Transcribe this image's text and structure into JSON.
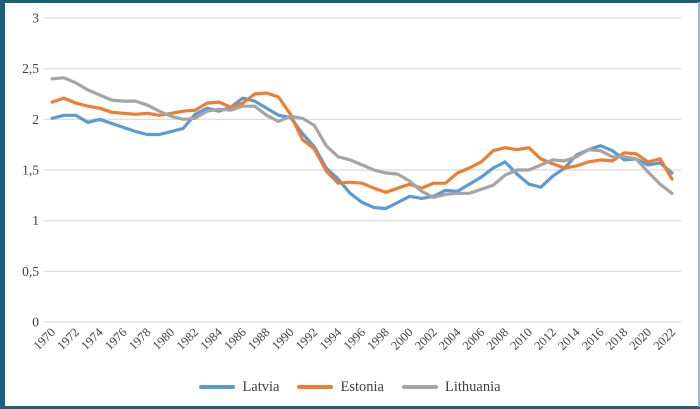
{
  "chart_data": {
    "type": "line",
    "title": "",
    "xlabel": "",
    "ylabel": "",
    "x": [
      1970,
      1971,
      1972,
      1973,
      1974,
      1975,
      1976,
      1977,
      1978,
      1979,
      1980,
      1981,
      1982,
      1983,
      1984,
      1985,
      1986,
      1987,
      1988,
      1989,
      1990,
      1991,
      1992,
      1993,
      1994,
      1995,
      1996,
      1997,
      1998,
      1999,
      2000,
      2001,
      2002,
      2003,
      2004,
      2005,
      2006,
      2007,
      2008,
      2009,
      2010,
      2011,
      2012,
      2013,
      2014,
      2015,
      2016,
      2017,
      2018,
      2019,
      2020,
      2021,
      2022
    ],
    "series": [
      {
        "name": "Latvia",
        "color": "#5B9BD5",
        "values": [
          2.01,
          2.04,
          2.04,
          1.97,
          2.0,
          1.96,
          1.92,
          1.88,
          1.85,
          1.85,
          1.88,
          1.91,
          2.05,
          2.11,
          2.08,
          2.12,
          2.21,
          2.18,
          2.11,
          2.04,
          2.02,
          1.86,
          1.73,
          1.52,
          1.41,
          1.27,
          1.18,
          1.13,
          1.12,
          1.18,
          1.24,
          1.22,
          1.24,
          1.3,
          1.29,
          1.36,
          1.43,
          1.52,
          1.58,
          1.46,
          1.36,
          1.33,
          1.44,
          1.52,
          1.65,
          1.7,
          1.74,
          1.69,
          1.6,
          1.61,
          1.55,
          1.57,
          1.47
        ]
      },
      {
        "name": "Estonia",
        "color": "#ED7D31",
        "values": [
          2.17,
          2.21,
          2.16,
          2.13,
          2.11,
          2.07,
          2.06,
          2.05,
          2.06,
          2.04,
          2.06,
          2.08,
          2.09,
          2.16,
          2.17,
          2.12,
          2.16,
          2.25,
          2.26,
          2.22,
          2.05,
          1.8,
          1.71,
          1.49,
          1.37,
          1.38,
          1.37,
          1.32,
          1.28,
          1.32,
          1.36,
          1.32,
          1.37,
          1.37,
          1.47,
          1.52,
          1.58,
          1.69,
          1.72,
          1.7,
          1.72,
          1.61,
          1.56,
          1.52,
          1.54,
          1.58,
          1.6,
          1.59,
          1.67,
          1.66,
          1.58,
          1.61,
          1.41
        ]
      },
      {
        "name": "Lithuania",
        "color": "#A5A5A5",
        "values": [
          2.4,
          2.41,
          2.36,
          2.29,
          2.24,
          2.19,
          2.18,
          2.18,
          2.14,
          2.08,
          2.03,
          2.0,
          2.01,
          2.08,
          2.1,
          2.09,
          2.13,
          2.13,
          2.04,
          1.98,
          2.03,
          2.01,
          1.94,
          1.74,
          1.63,
          1.6,
          1.55,
          1.5,
          1.47,
          1.46,
          1.39,
          1.29,
          1.23,
          1.26,
          1.27,
          1.27,
          1.31,
          1.35,
          1.45,
          1.5,
          1.5,
          1.55,
          1.6,
          1.59,
          1.63,
          1.7,
          1.69,
          1.63,
          1.63,
          1.61,
          1.48,
          1.36,
          1.27
        ]
      }
    ],
    "y_axis": {
      "min": 0,
      "max": 3,
      "ticks": [
        {
          "value": 0,
          "label": "0"
        },
        {
          "value": 0.5,
          "label": "0,5"
        },
        {
          "value": 1,
          "label": "1"
        },
        {
          "value": 1.5,
          "label": "1,5"
        },
        {
          "value": 2,
          "label": "2"
        },
        {
          "value": 2.5,
          "label": "2,5"
        },
        {
          "value": 3,
          "label": "3"
        }
      ]
    },
    "x_axis": {
      "tick_labels": [
        "1970",
        "1972",
        "1974",
        "1976",
        "1978",
        "1980",
        "1982",
        "1984",
        "1986",
        "1988",
        "1990",
        "1992",
        "1994",
        "1996",
        "1998",
        "2000",
        "2002",
        "2004",
        "2006",
        "2008",
        "2010",
        "2012",
        "2014",
        "2016",
        "2018",
        "2020",
        "2022"
      ],
      "label_rotation_deg": -45
    },
    "legend": {
      "position": "bottom",
      "entries": [
        "Latvia",
        "Estonia",
        "Lithuania"
      ]
    },
    "grid": "horizontal",
    "gridline_color": "#D9D9D9",
    "label_color": "#3F3F3F",
    "ylim": [
      0,
      3
    ]
  }
}
